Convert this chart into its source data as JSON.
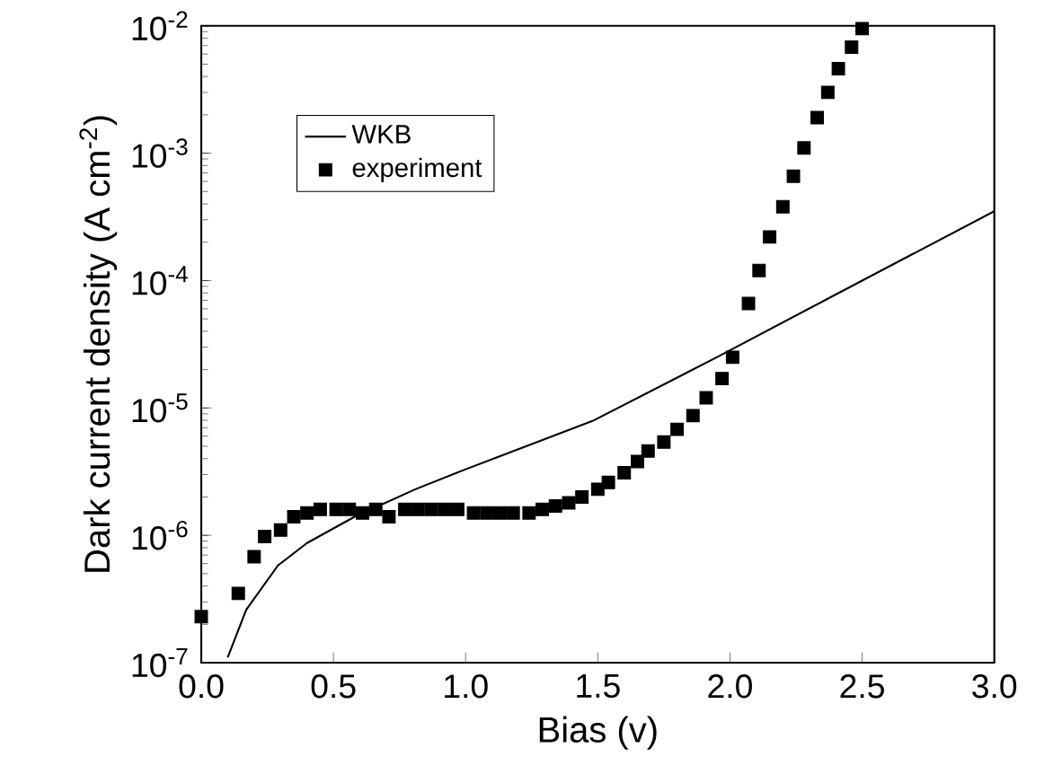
{
  "chart_data": {
    "type": "line",
    "xlabel": "Bias (v)",
    "ylabel": "Dark current density (A cm$^{-2}$)",
    "log": "y",
    "legend": "top left",
    "grid": false,
    "xlim": [
      0,
      3.0
    ],
    "ylim": [
      1e-07,
      0.01
    ],
    "xticks": [
      {
        "value": 0,
        "label": "0.0"
      },
      {
        "value": 0.5,
        "label": "0.5"
      },
      {
        "value": 1.0,
        "label": "1.0"
      },
      {
        "value": 1.5,
        "label": "1.5"
      },
      {
        "value": 2.0,
        "label": "2.0"
      },
      {
        "value": 2.5,
        "label": "2.5"
      },
      {
        "value": 3.0,
        "label": "3.0"
      }
    ],
    "yticks": [
      {
        "value": 1e-07,
        "label": "10$^{-7}$"
      },
      {
        "value": 1e-06,
        "label": "10$^{-6}$"
      },
      {
        "value": 1e-05,
        "label": "10$^{-5}$"
      },
      {
        "value": 0.0001,
        "label": "10$^{-4}$"
      },
      {
        "value": 0.001,
        "label": "10$^{-3}$"
      },
      {
        "value": 0.01,
        "label": "10$^{-2}$"
      }
    ],
    "series": [
      {
        "name": "WKB",
        "color": "#000000",
        "marker": "none",
        "line_style": "solid",
        "x": [
          0.1,
          0.17,
          0.29,
          0.4,
          0.58,
          0.81,
          1.0,
          1.48,
          1.95,
          2.5,
          3.0
        ],
        "values": [
          1.1e-07,
          2.6e-07,
          5.8e-07,
          8.7e-07,
          1.4e-06,
          2.3e-06,
          3.3e-06,
          7.9e-06,
          2.5e-05,
          0.0001,
          0.00035
        ]
      },
      {
        "name": "experiment",
        "type": "scatter",
        "color": "#000000",
        "marker": "square",
        "x": [
          0,
          0.14,
          0.2,
          0.24,
          0.3,
          0.35,
          0.4,
          0.45,
          0.51,
          0.56,
          0.61,
          0.66,
          0.71,
          0.77,
          0.82,
          0.87,
          0.92,
          0.97,
          1.03,
          1.08,
          1.13,
          1.18,
          1.24,
          1.29,
          1.34,
          1.39,
          1.44,
          1.5,
          1.54,
          1.6,
          1.65,
          1.69,
          1.75,
          1.8,
          1.86,
          1.91,
          1.97,
          2.01,
          2.07,
          2.11,
          2.15,
          2.2,
          2.24,
          2.28,
          2.33,
          2.37,
          2.41,
          2.46,
          2.5
        ],
        "values": [
          2.3e-07,
          3.5e-07,
          6.8e-07,
          9.8e-07,
          1.1e-06,
          1.4e-06,
          1.5e-06,
          1.6e-06,
          1.6e-06,
          1.6e-06,
          1.5e-06,
          1.6e-06,
          1.4e-06,
          1.6e-06,
          1.6e-06,
          1.6e-06,
          1.6e-06,
          1.6e-06,
          1.5e-06,
          1.5e-06,
          1.5e-06,
          1.5e-06,
          1.5e-06,
          1.6e-06,
          1.7e-06,
          1.8e-06,
          2e-06,
          2.3e-06,
          2.6e-06,
          3.1e-06,
          3.8e-06,
          4.6e-06,
          5.4e-06,
          6.8e-06,
          8.7e-06,
          1.2e-05,
          1.7e-05,
          2.5e-05,
          6.6e-05,
          0.00012,
          0.00022,
          0.00038,
          0.00066,
          0.0011,
          0.0019,
          0.003,
          0.0046,
          0.0068,
          0.0095
        ]
      }
    ]
  }
}
